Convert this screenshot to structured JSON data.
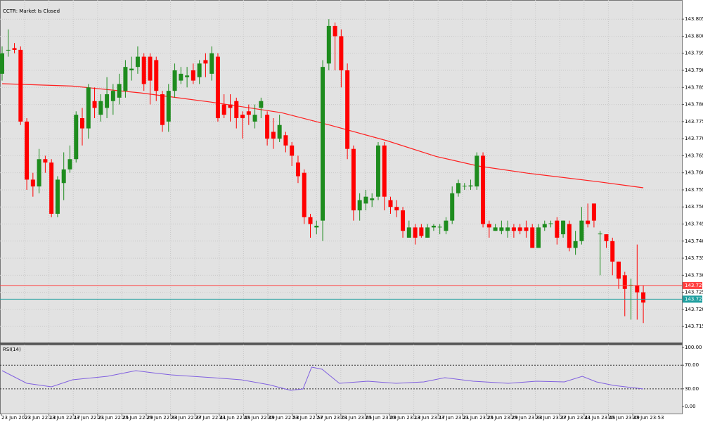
{
  "chart_data": {
    "type": "candlestick",
    "title": "CCTR: Market Is Closed",
    "up_color": "#1e8c1e",
    "down_color": "#ff0000",
    "ylim": [
      143.7103,
      143.8106
    ],
    "yticks": [
      143.715,
      {
        "value": 143.72,
        "label": "143.720"
      },
      143.725,
      {
        "value": 143.73,
        "label": "143.730"
      },
      143.735,
      {
        "value": 143.74,
        "label": "143.740"
      },
      143.745,
      {
        "value": 143.75,
        "label": "143.750"
      },
      143.755,
      {
        "value": 143.76,
        "label": "143.760"
      },
      143.765,
      {
        "value": 143.77,
        "label": "143.770"
      },
      143.775,
      {
        "value": 143.78,
        "label": "143.780"
      },
      143.785,
      {
        "value": 143.79,
        "label": "143.790"
      },
      143.795,
      {
        "value": 143.8,
        "label": "143.800"
      },
      143.805
    ],
    "grid": true,
    "x_labels": [
      "23 Jun 2023",
      "23 Jun 22:13",
      "23 Jun 22:17",
      "23 Jun 22:21",
      "23 Jun 22:25",
      "23 Jun 22:29",
      "23 Jun 22:33",
      "23 Jun 22:37",
      "23 Jun 22:41",
      "23 Jun 22:45",
      "23 Jun 22:49",
      "23 Jun 22:53",
      "23 Jun 22:57",
      "23 Jun 23:01",
      "23 Jun 23:05",
      "23 Jun 23:09",
      "23 Jun 23:13",
      "23 Jun 23:17",
      "23 Jun 23:21",
      "23 Jun 23:25",
      "23 Jun 23:29",
      "23 Jun 23:33",
      "23 Jun 23:37",
      "23 Jun 23:41",
      "23 Jun 23:45",
      "23 Jun 23:49",
      "23 Jun 23:53"
    ],
    "candles": [
      [
        143.789,
        143.797,
        143.787,
        143.795
      ],
      [
        143.796,
        143.802,
        143.794,
        143.796
      ],
      [
        143.7965,
        143.798,
        143.795,
        143.796
      ],
      [
        143.796,
        143.797,
        143.774,
        143.775
      ],
      [
        143.775,
        143.776,
        143.755,
        143.758
      ],
      [
        143.758,
        143.76,
        143.753,
        143.756
      ],
      [
        143.756,
        143.767,
        143.754,
        143.764
      ],
      [
        143.764,
        143.765,
        143.76,
        143.763
      ],
      [
        143.763,
        143.764,
        143.747,
        143.748
      ],
      [
        143.748,
        143.759,
        143.747,
        143.758
      ],
      [
        143.757,
        143.766,
        143.752,
        143.761
      ],
      [
        143.761,
        143.768,
        143.76,
        143.764
      ],
      [
        143.764,
        143.778,
        143.763,
        143.777
      ],
      [
        143.776,
        143.779,
        143.768,
        143.773
      ],
      [
        143.773,
        143.786,
        143.77,
        143.785
      ],
      [
        143.781,
        143.785,
        143.776,
        143.779
      ],
      [
        143.777,
        143.783,
        143.775,
        143.781
      ],
      [
        143.779,
        143.788,
        143.776,
        143.783
      ],
      [
        143.781,
        143.786,
        143.777,
        143.784
      ],
      [
        143.782,
        143.789,
        143.78,
        143.786
      ],
      [
        143.784,
        143.793,
        143.782,
        143.791
      ],
      [
        143.79,
        143.794,
        143.787,
        143.7905
      ],
      [
        143.791,
        143.797,
        143.789,
        143.794
      ],
      [
        143.794,
        143.795,
        143.784,
        143.786
      ],
      [
        143.794,
        143.795,
        143.78,
        143.787
      ],
      [
        143.793,
        143.794,
        143.781,
        143.784
      ],
      [
        143.783,
        143.784,
        143.772,
        143.774
      ],
      [
        143.775,
        143.786,
        143.772,
        143.784
      ],
      [
        143.784,
        143.792,
        143.782,
        143.79
      ],
      [
        143.787,
        143.791,
        143.786,
        143.789
      ],
      [
        143.788,
        143.791,
        143.785,
        143.7885
      ],
      [
        143.79,
        143.792,
        143.786,
        143.787
      ],
      [
        143.788,
        143.793,
        143.786,
        143.792
      ],
      [
        143.793,
        143.795,
        143.788,
        143.792
      ],
      [
        143.789,
        143.797,
        143.787,
        143.795
      ],
      [
        143.794,
        143.795,
        143.775,
        143.776
      ],
      [
        143.78,
        143.783,
        143.776,
        143.777
      ],
      [
        143.78,
        143.783,
        143.775,
        143.779
      ],
      [
        143.781,
        143.782,
        143.773,
        143.776
      ],
      [
        143.777,
        143.778,
        143.77,
        143.776
      ],
      [
        143.778,
        143.78,
        143.774,
        143.777
      ],
      [
        143.775,
        143.78,
        143.773,
        143.777
      ],
      [
        143.779,
        143.782,
        143.776,
        143.781
      ],
      [
        143.777,
        143.778,
        143.768,
        143.77
      ],
      [
        143.772,
        143.776,
        143.767,
        143.77
      ],
      [
        143.77,
        143.777,
        143.769,
        143.774
      ],
      [
        143.771,
        143.772,
        143.766,
        143.768
      ],
      [
        143.768,
        143.769,
        143.762,
        143.765
      ],
      [
        143.763,
        143.765,
        143.757,
        143.759
      ],
      [
        143.76,
        143.761,
        143.745,
        143.747
      ],
      [
        143.747,
        143.748,
        143.741,
        143.745
      ],
      [
        143.744,
        143.746,
        143.742,
        143.7445
      ],
      [
        143.746,
        143.793,
        143.74,
        143.791
      ],
      [
        143.792,
        143.805,
        143.79,
        143.803
      ],
      [
        143.803,
        143.804,
        143.79,
        143.8
      ],
      [
        143.8,
        143.802,
        143.785,
        143.79
      ],
      [
        143.79,
        143.792,
        143.764,
        143.767
      ],
      [
        143.767,
        143.768,
        143.746,
        143.749
      ],
      [
        143.749,
        143.754,
        143.746,
        143.752
      ],
      [
        143.751,
        143.755,
        143.749,
        143.753
      ],
      [
        143.752,
        143.754,
        143.75,
        143.7525
      ],
      [
        143.753,
        143.769,
        143.752,
        143.768
      ],
      [
        143.768,
        143.769,
        143.749,
        143.753
      ],
      [
        143.752,
        143.753,
        143.748,
        143.75
      ],
      [
        143.75,
        143.752,
        143.747,
        143.749
      ],
      [
        143.749,
        143.75,
        143.741,
        143.743
      ],
      [
        143.741,
        143.746,
        143.741,
        143.744
      ],
      [
        143.744,
        143.745,
        143.739,
        143.741
      ],
      [
        143.744,
        143.745,
        143.741,
        143.7415
      ],
      [
        143.741,
        143.745,
        143.741,
        143.744
      ],
      [
        143.744,
        143.745,
        143.743,
        143.7445
      ],
      [
        143.744,
        143.745,
        143.742,
        143.7442
      ],
      [
        143.743,
        143.747,
        143.742,
        143.746
      ],
      [
        143.746,
        143.756,
        143.745,
        143.754
      ],
      [
        143.754,
        143.758,
        143.753,
        143.757
      ],
      [
        143.756,
        143.757,
        143.755,
        143.7562
      ],
      [
        143.756,
        143.758,
        143.755,
        143.7563
      ],
      [
        143.756,
        143.766,
        143.755,
        143.765
      ],
      [
        143.765,
        143.766,
        143.744,
        143.745
      ],
      [
        143.745,
        143.746,
        143.741,
        143.744
      ],
      [
        143.743,
        143.745,
        143.743,
        143.744
      ],
      [
        143.743,
        143.746,
        143.742,
        143.744
      ],
      [
        143.743,
        143.746,
        143.741,
        143.744
      ],
      [
        143.744,
        143.745,
        143.741,
        143.743
      ],
      [
        143.744,
        143.745,
        143.742,
        143.743
      ],
      [
        143.744,
        143.746,
        143.741,
        143.743
      ],
      [
        143.744,
        143.745,
        143.738,
        143.738
      ],
      [
        143.738,
        143.745,
        143.738,
        143.744
      ],
      [
        143.744,
        143.746,
        143.743,
        143.745
      ],
      [
        143.745,
        143.746,
        143.744,
        143.7452
      ],
      [
        143.746,
        143.747,
        143.739,
        143.741
      ],
      [
        143.742,
        143.746,
        143.741,
        143.746
      ],
      [
        143.745,
        143.746,
        143.737,
        143.738
      ],
      [
        143.738,
        143.743,
        143.736,
        143.74
      ],
      [
        143.74,
        143.75,
        143.739,
        143.746
      ],
      [
        143.746,
        143.751,
        143.744,
        143.745
      ],
      [
        143.751,
        143.751,
        143.744,
        143.746
      ],
      [
        143.742,
        143.743,
        143.73,
        143.7422
      ],
      [
        143.742,
        143.742,
        143.738,
        143.74
      ],
      [
        143.74,
        143.741,
        143.73,
        143.734
      ],
      [
        143.734,
        143.734,
        143.726,
        143.729
      ],
      [
        143.73,
        143.731,
        143.718,
        143.726
      ],
      [
        143.727,
        143.729,
        143.717,
        143.7272
      ],
      [
        143.727,
        143.739,
        143.717,
        143.725
      ],
      [
        143.725,
        143.727,
        143.716,
        143.722
      ]
    ],
    "ma": {
      "color": "#ff2020",
      "x": [
        0,
        11.4,
        22.5,
        33.9,
        45.3,
        53.3,
        62.4,
        70.4,
        77.2,
        85.2,
        96.6,
        104
      ],
      "values": [
        143.7861,
        143.7854,
        143.7834,
        143.7807,
        143.7776,
        143.7739,
        143.7694,
        143.7648,
        143.762,
        143.7599,
        143.7574,
        143.7556
      ]
    },
    "price_lines": [
      {
        "value": 143.727,
        "color": "#ff4040"
      },
      {
        "value": 143.723,
        "color": "#20a0a0"
      }
    ],
    "rsi": {
      "title": "RSI(14)",
      "color": "#8060e0",
      "ylim": [
        -11.9,
        104.8
      ],
      "yticks": [
        {
          "value": 100,
          "label": "100.00"
        },
        {
          "value": 70,
          "label": "70.00"
        },
        {
          "value": 30,
          "label": "30.00"
        },
        {
          "value": 0,
          "label": "0.00"
        }
      ],
      "levels": [
        70,
        30
      ],
      "x": [
        0,
        4,
        8,
        11.4,
        17.1,
        21.7,
        24.5,
        27.4,
        34.2,
        38.8,
        43.3,
        46.8,
        48.8,
        50.2,
        51.9,
        54.7,
        59.3,
        63.9,
        68.4,
        71.8,
        76.4,
        82.1,
        86.7,
        91.2,
        94.1,
        96.4,
        99.2,
        104
      ],
      "values": [
        60.7,
        39.3,
        33.3,
        45.2,
        51.2,
        60.7,
        57.1,
        53.6,
        48.8,
        45.2,
        36.9,
        27.4,
        29.8,
        66.7,
        63.1,
        39.3,
        42.9,
        39.3,
        41.7,
        48.8,
        42.9,
        39.3,
        42.9,
        41.7,
        51.2,
        41.7,
        35.7,
        29.8
      ]
    }
  }
}
